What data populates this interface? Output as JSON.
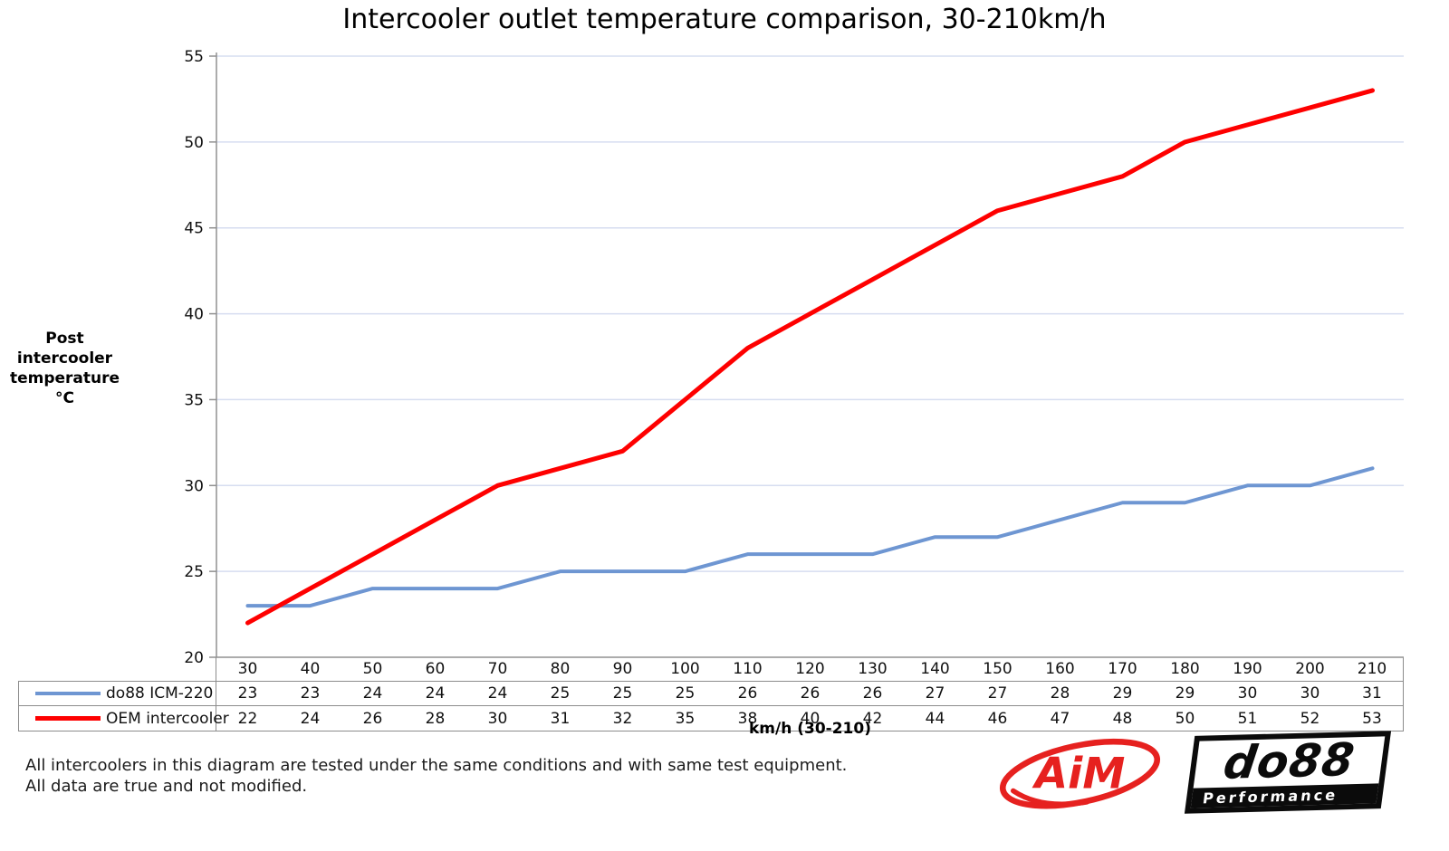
{
  "title": "Intercooler outlet temperature comparison, 30-210km/h",
  "chart_data": {
    "type": "line",
    "title": "Intercooler outlet temperature comparison, 30-210km/h",
    "categories": [
      30,
      40,
      50,
      60,
      70,
      80,
      90,
      100,
      110,
      120,
      130,
      140,
      150,
      160,
      170,
      180,
      190,
      200,
      210
    ],
    "series": [
      {
        "name": "do88 ICM-220",
        "color": "#6e96d2",
        "values": [
          23,
          23,
          24,
          24,
          24,
          25,
          25,
          25,
          26,
          26,
          26,
          27,
          27,
          28,
          29,
          29,
          30,
          30,
          31
        ]
      },
      {
        "name": "OEM intercooler",
        "color": "#fe0000",
        "values": [
          22,
          24,
          26,
          28,
          30,
          31,
          32,
          35,
          38,
          40,
          42,
          44,
          46,
          47,
          48,
          50,
          51,
          52,
          53
        ]
      }
    ],
    "ylabel": "Post intercooler temperature °C",
    "ylabel_lines": [
      "Post intercooler",
      "temperature °C"
    ],
    "xlabel": "km/h (30-210)",
    "ylim": [
      20,
      55
    ],
    "ytick_step": 5,
    "grid": "horizontal-major",
    "gridline_color": "#d6ddf0",
    "axis_color": "#909090",
    "legend_position": "data-table-left"
  },
  "footer": {
    "line1": "All intercoolers in this diagram are tested under the same conditions and with same test equipment.",
    "line2": "All data are true and not modified."
  },
  "logos": {
    "aim": {
      "text": "AiM",
      "color": "#e6211f"
    },
    "do88": {
      "text": "do88",
      "subtext": "Performance",
      "color": "#0b0b0b"
    }
  }
}
